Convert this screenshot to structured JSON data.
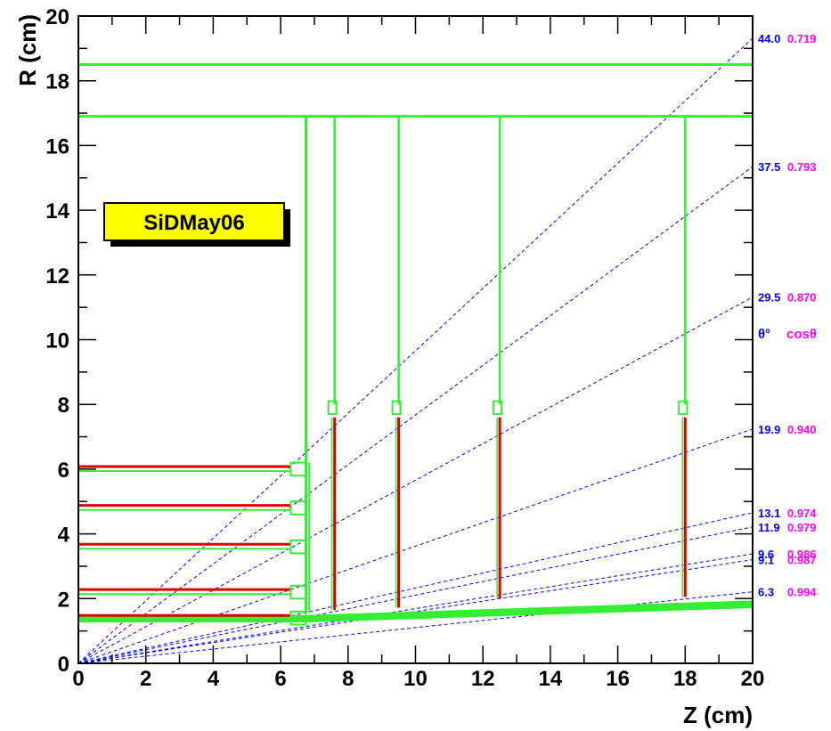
{
  "chart_data": {
    "type": "diagram",
    "title": "",
    "label_box": "SiDMay06",
    "xlabel": "Z (cm)",
    "ylabel": "R (cm)",
    "xlim": [
      0,
      20
    ],
    "ylim": [
      0,
      20
    ],
    "x_ticks": [
      "0",
      "2",
      "4",
      "6",
      "8",
      "10",
      "12",
      "14",
      "16",
      "18",
      "20"
    ],
    "y_ticks": [
      "0",
      "2",
      "4",
      "6",
      "8",
      "10",
      "12",
      "14",
      "16",
      "18",
      "20"
    ],
    "angle_lines": [
      {
        "theta": "44.0",
        "cos": "0.719"
      },
      {
        "theta": "37.5",
        "cos": "0.793"
      },
      {
        "theta": "29.5",
        "cos": "0.870"
      },
      {
        "theta": "19.9",
        "cos": "0.940"
      },
      {
        "theta": "13.1",
        "cos": "0.974"
      },
      {
        "theta": "11.9",
        "cos": "0.979"
      },
      {
        "theta": "9.6",
        "cos": "0.986"
      },
      {
        "theta": "9.1",
        "cos": "0.987"
      },
      {
        "theta": "6.3",
        "cos": "0.994"
      }
    ],
    "legend_header": {
      "theta": "θ°",
      "cos": "cosθ"
    },
    "barrel_layers_r": [
      1.4,
      2.2,
      3.6,
      4.8,
      6.0
    ],
    "disk_z": [
      7.6,
      9.5,
      12.5,
      18.0
    ],
    "support_cylinder_r": [
      16.9,
      18.5
    ],
    "colors": {
      "detector": "#33ee33",
      "sensor": "#dd0000",
      "angle_line": "#0000ff",
      "theta_text": "#0000ff",
      "cos_text": "#ff00ff",
      "label_box_fill": "#ffff00"
    }
  }
}
